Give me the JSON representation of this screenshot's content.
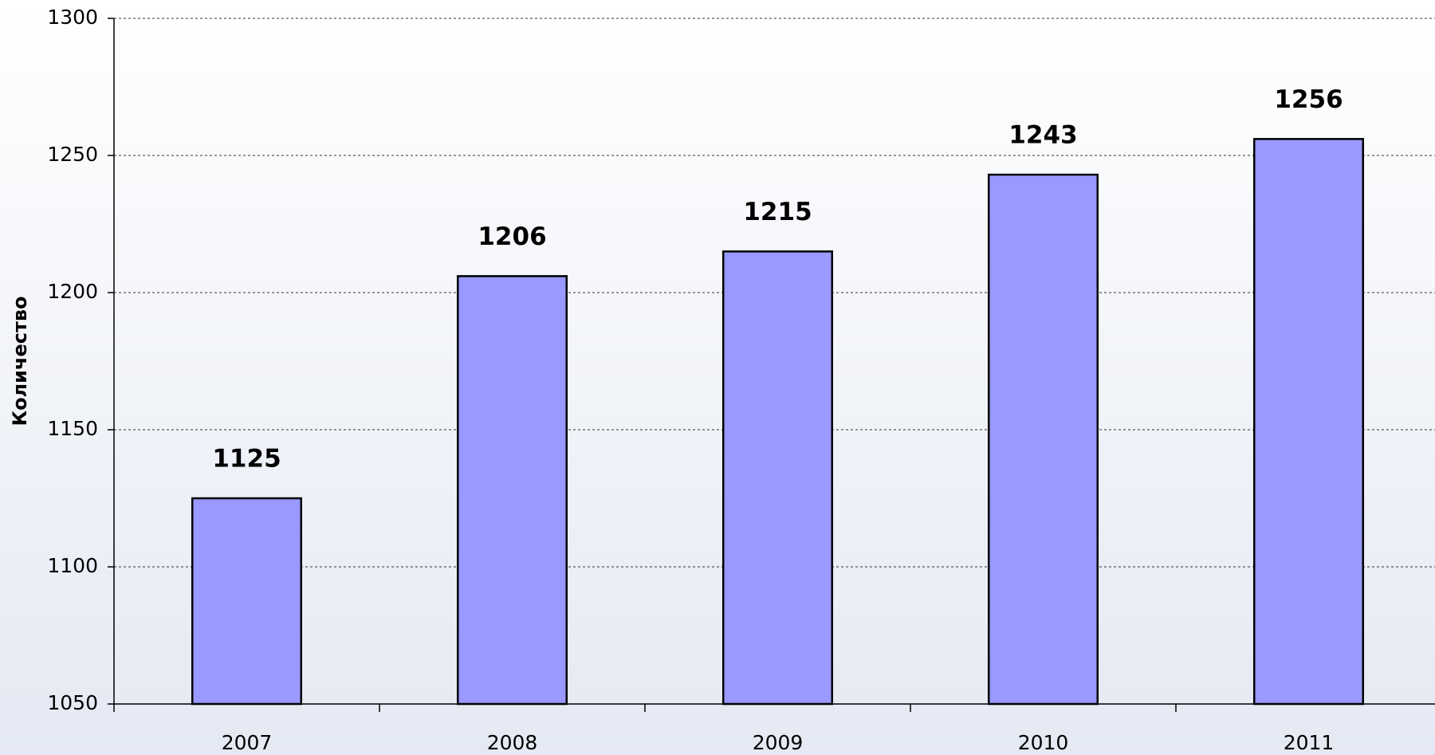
{
  "chart_data": {
    "type": "bar",
    "y_label": "Количество",
    "categories": [
      "2007",
      "2008",
      "2009",
      "2010",
      "2011"
    ],
    "values": [
      1125,
      1206,
      1215,
      1243,
      1256
    ],
    "color": "#9999ff",
    "ylim": [
      1050,
      1300
    ],
    "yticks": [
      1050,
      1100,
      1150,
      1200,
      1250,
      1300
    ],
    "grid": true,
    "data_labels": true
  }
}
